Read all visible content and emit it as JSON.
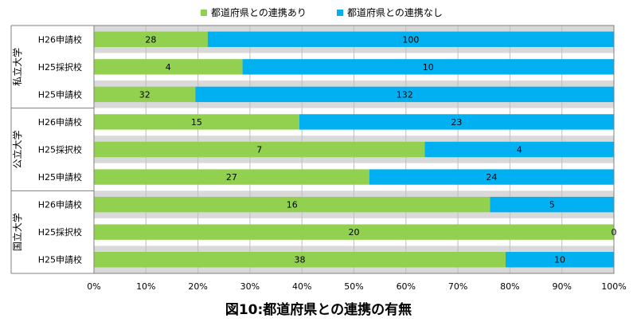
{
  "caption": "図10:都道府県との連携の有無",
  "chart_data": {
    "type": "bar",
    "orientation": "horizontal",
    "stacked": "percent",
    "title": "",
    "xlabel": "",
    "ylabel": "",
    "xlim": [
      0,
      100
    ],
    "x_ticks": [
      "0%",
      "10%",
      "20%",
      "30%",
      "40%",
      "50%",
      "60%",
      "70%",
      "80%",
      "90%",
      "100%"
    ],
    "grid": true,
    "legend_position": "top",
    "groups": [
      {
        "label": "私立大学",
        "rows": [
          "H26申請校",
          "H25採択校",
          "H25申請校"
        ]
      },
      {
        "label": "公立大学",
        "rows": [
          "H26申請校",
          "H25採択校",
          "H25申請校"
        ]
      },
      {
        "label": "国立大学",
        "rows": [
          "H26申請校",
          "H25採択校",
          "H25申請校"
        ]
      }
    ],
    "series": [
      {
        "name": "都道府県との連携あり",
        "color": "#92d050",
        "values": [
          28,
          4,
          32,
          15,
          7,
          27,
          16,
          20,
          38
        ]
      },
      {
        "name": "都道府県との連携なし",
        "color": "#00b0f0",
        "values": [
          100,
          10,
          132,
          23,
          4,
          24,
          5,
          0,
          10
        ]
      }
    ]
  }
}
